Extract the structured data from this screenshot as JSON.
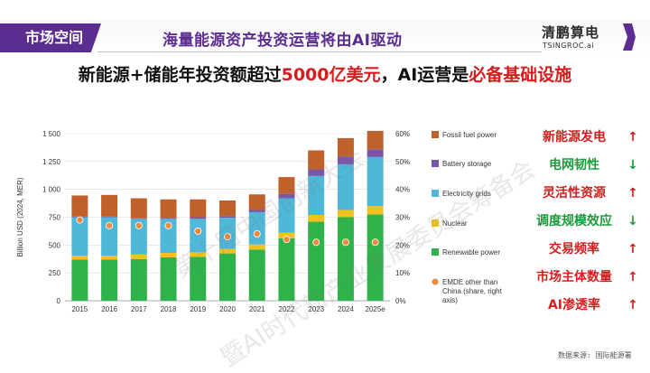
{
  "header": {
    "section_tab": "市场空间",
    "headline": "海量能源资产投资运营将由AI驱动",
    "brand_name": "清鹏算电",
    "brand_sub": "TSINGROC.ai"
  },
  "subtitle": {
    "part1": "新能源+储能年投资额超过",
    "highlight1": "5000亿美元",
    "part2": "，AI运营是",
    "highlight2": "必备基础设施"
  },
  "right_list": [
    {
      "label": "新能源发电",
      "color": "#d21e1e",
      "trend": "up",
      "arrow": "↑",
      "arrow_color": "#d21e1e"
    },
    {
      "label": "电网韧性",
      "color": "#1a9a3a",
      "trend": "down",
      "arrow": "↓",
      "arrow_color": "#1a9a3a"
    },
    {
      "label": "灵活性资源",
      "color": "#d21e1e",
      "trend": "up",
      "arrow": "↑",
      "arrow_color": "#d21e1e"
    },
    {
      "label": "调度规模效应",
      "color": "#1a9a3a",
      "trend": "down",
      "arrow": "↓",
      "arrow_color": "#1a9a3a"
    },
    {
      "label": "交易频率",
      "color": "#d21e1e",
      "trend": "up",
      "arrow": "↑",
      "arrow_color": "#d21e1e"
    },
    {
      "label": "市场主体数量",
      "color": "#d21e1e",
      "trend": "up",
      "arrow": "↑",
      "arrow_color": "#d21e1e"
    },
    {
      "label": "AI渗透率",
      "color": "#d21e1e",
      "trend": "up",
      "arrow": "↑",
      "arrow_color": "#d21e1e"
    }
  ],
  "source": "数据来源: 国际能源署",
  "watermark": {
    "line1": "第十届中国创新大会",
    "line2": "暨AI时代新产业发展委员会筹备会"
  },
  "chart_data": {
    "type": "bar",
    "stacked": true,
    "ylabel": "Billion USD (2024, MER)",
    "ylim": [
      0,
      1500
    ],
    "yticks": [
      "0",
      "250",
      "500",
      "750",
      "1 000",
      "1 250",
      "1 500"
    ],
    "y2lim": [
      0,
      60
    ],
    "y2ticks": [
      "0%",
      "10%",
      "20%",
      "30%",
      "40%",
      "50%",
      "60%"
    ],
    "grid": true,
    "categories": [
      "2015",
      "2016",
      "2017",
      "2018",
      "2019",
      "2020",
      "2021",
      "2022",
      "2023",
      "2024",
      "2025e"
    ],
    "series": [
      {
        "name": "Renewable power",
        "color": "#2fb24a",
        "values": [
          370,
          370,
          375,
          390,
          395,
          425,
          460,
          560,
          710,
          750,
          775
        ]
      },
      {
        "name": "Nuclear",
        "color": "#f2c21a",
        "values": [
          35,
          35,
          40,
          40,
          40,
          40,
          45,
          50,
          60,
          65,
          75
        ]
      },
      {
        "name": "Electricity grids",
        "color": "#4fb8d8",
        "values": [
          345,
          345,
          320,
          305,
          300,
          280,
          290,
          310,
          350,
          410,
          440
        ]
      },
      {
        "name": "Battery storage",
        "color": "#7b56a8",
        "values": [
          5,
          5,
          5,
          10,
          15,
          15,
          20,
          40,
          60,
          70,
          70
        ]
      },
      {
        "name": "Fossil fuel power",
        "color": "#c0602a",
        "values": [
          190,
          195,
          180,
          165,
          160,
          140,
          140,
          150,
          170,
          165,
          165
        ]
      }
    ],
    "secondary_series": {
      "name": "EMDE other than China (share, right axis)",
      "color": "#f08a3c",
      "values": [
        29,
        27,
        27,
        27,
        25,
        23,
        24,
        22,
        21,
        21,
        21
      ]
    },
    "legend": {
      "placement": "right",
      "entries": [
        {
          "label": "Fossil fuel power",
          "color": "#c0602a",
          "kind": "square"
        },
        {
          "label": "Battery storage",
          "color": "#7b56a8",
          "kind": "square"
        },
        {
          "label": "Electricity grids",
          "color": "#4fb8d8",
          "kind": "square"
        },
        {
          "label": "Nuclear",
          "color": "#f2c21a",
          "kind": "square"
        },
        {
          "label": "Renewable power",
          "color": "#2fb24a",
          "kind": "square"
        },
        {
          "label": "EMDE other than China (share, right axis)",
          "color": "#f08a3c",
          "kind": "dot"
        }
      ]
    }
  }
}
